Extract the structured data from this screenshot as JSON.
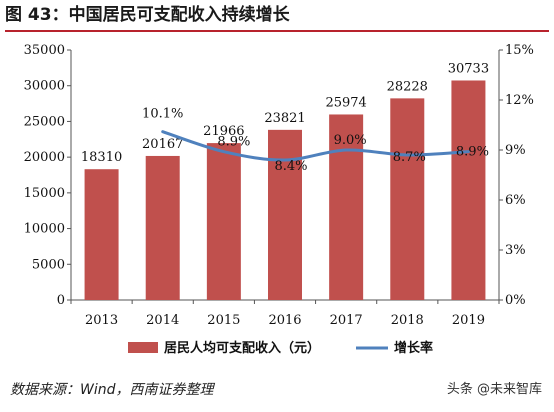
{
  "figure": {
    "title": "图 43：中国居民可支配收入持续增长",
    "source": "数据来源：Wind，西南证券整理",
    "watermark": "头条 @未来智库"
  },
  "colors": {
    "bar": "#c0504d",
    "line": "#4f81bd",
    "title_rule": "#b8232d"
  },
  "chart_data": {
    "type": "bar",
    "categories": [
      "2013",
      "2014",
      "2015",
      "2016",
      "2017",
      "2018",
      "2019"
    ],
    "series": [
      {
        "name": "居民人均可支配收入（元）",
        "type": "bar",
        "axis": "left",
        "values": [
          18310,
          20167,
          21966,
          23821,
          25974,
          28228,
          30733
        ],
        "labels": [
          "18310",
          "20167",
          "21966",
          "23821",
          "25974",
          "28228",
          "30733"
        ]
      },
      {
        "name": "增长率",
        "type": "line",
        "axis": "right",
        "values": [
          null,
          10.1,
          8.9,
          8.4,
          9.0,
          8.7,
          8.9
        ],
        "labels": [
          "",
          "10.1%",
          "8.9%",
          "8.4%",
          "9.0%",
          "8.7%",
          "8.9%"
        ]
      }
    ],
    "y_left": {
      "min": 0,
      "max": 35000,
      "ticks": [
        0,
        5000,
        10000,
        15000,
        20000,
        25000,
        30000,
        35000
      ],
      "tick_labels": [
        "0",
        "5000",
        "10000",
        "15000",
        "20000",
        "25000",
        "30000",
        "35000"
      ]
    },
    "y_right": {
      "min": 0,
      "max": 15,
      "ticks": [
        0,
        3,
        6,
        9,
        12,
        15
      ],
      "tick_labels": [
        "0%",
        "3%",
        "6%",
        "9%",
        "12%",
        "15%"
      ]
    },
    "grid": false,
    "legend_position": "bottom"
  }
}
